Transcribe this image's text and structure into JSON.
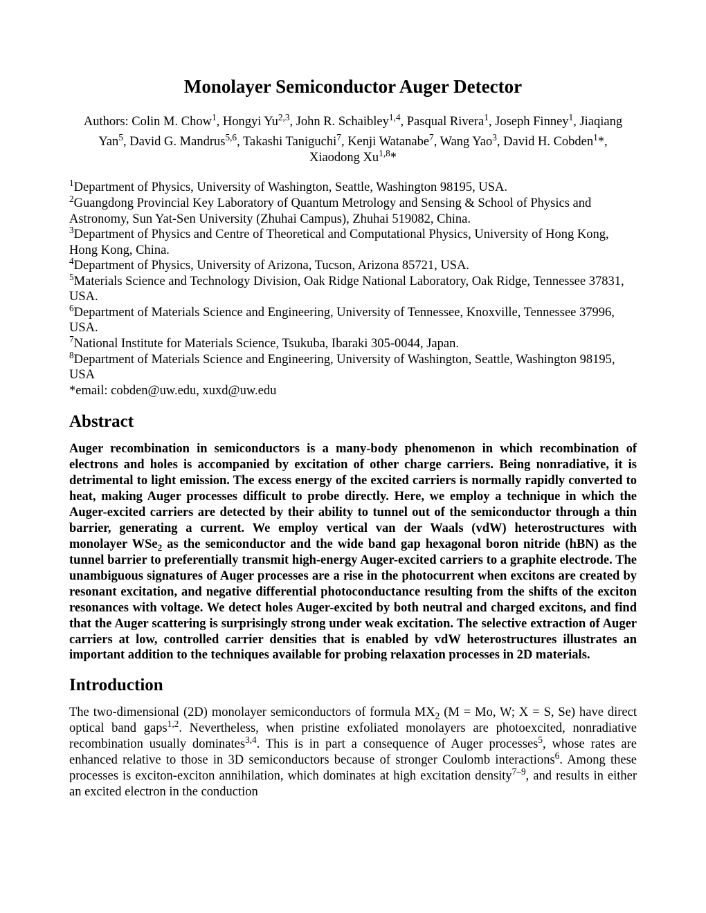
{
  "title": "Monolayer Semiconductor Auger Detector",
  "authors_line1_prefix": "Authors: Colin M. Chow",
  "a1_s": "1",
  "a1_t": ", Hongyi Yu",
  "a2_s": "2,3",
  "a2_t": ", John R. Schaibley",
  "a3_s": "1,4",
  "a3_t": ", Pasqual Rivera",
  "a4_s": "1",
  "a4_t": ", Joseph Finney",
  "a5_s": "1",
  "a5_t": ", Jiaqiang",
  "line2_a": "Yan",
  "a6_s": "5",
  "a6_t": ", David G. Mandrus",
  "a7_s": "5,6",
  "a7_t": ", Takashi Taniguchi",
  "a8_s": "7",
  "a8_t": ", Kenji Watanabe",
  "a9_s": "7",
  "a9_t": ", Wang Yao",
  "a10_s": "3",
  "a10_t": ", David H. Cobden",
  "a11_s": "1",
  "a11_t": "*,",
  "line3_a": "Xiaodong Xu",
  "a12_s": "1,8",
  "a12_t": "*",
  "aff1_s": "1",
  "aff1": "Department of Physics, University of Washington, Seattle, Washington 98195, USA.",
  "aff2_s": "2",
  "aff2": "Guangdong Provincial Key Laboratory of Quantum Metrology and Sensing & School of Physics and Astronomy, Sun Yat-Sen University (Zhuhai Campus), Zhuhai 519082, China.",
  "aff3_s": "3",
  "aff3": "Department of Physics and Centre of Theoretical and Computational Physics, University of Hong Kong, Hong Kong, China.",
  "aff4_s": "4",
  "aff4": "Department of Physics, University of Arizona, Tucson, Arizona 85721, USA.",
  "aff5_s": "5",
  "aff5": "Materials Science and Technology Division, Oak Ridge National Laboratory, Oak Ridge, Tennessee 37831, USA.",
  "aff6_s": "6",
  "aff6": "Department of Materials Science and Engineering, University of Tennessee, Knoxville, Tennessee 37996, USA.",
  "aff7_s": "7",
  "aff7": "National Institute for Materials Science, Tsukuba, Ibaraki 305-0044, Japan.",
  "aff8_s": "8",
  "aff8": "Department of Materials Science and Engineering, University of Washington, Seattle, Washington 98195, USA",
  "email": "*email: cobden@uw.edu, xuxd@uw.edu",
  "abstract_head": "Abstract",
  "abs_p1a": "Auger recombination in semiconductors is a many-body phenomenon in which recombination of electrons and holes is accompanied by excitation of other charge carriers. Being nonradiative, it is detrimental to light emission. The excess energy of the excited carriers is normally rapidly converted to heat, making Auger processes difficult to probe directly. Here, we employ a technique in which the Auger-excited carriers are detected by their ability to tunnel out of the semiconductor through a thin barrier, generating a current. We employ vertical van der Waals (vdW) heterostructures with monolayer WSe",
  "abs_sub": "2",
  "abs_p1b": " as the semiconductor and the wide band gap hexagonal boron nitride (hBN) as the tunnel barrier to preferentially transmit high-energy Auger-excited carriers to a graphite electrode. The unambiguous signatures of Auger processes are a rise in the photocurrent when excitons are created by resonant excitation, and negative differential photoconductance resulting from the shifts of the exciton resonances with voltage. We detect holes Auger-excited by both neutral and charged excitons, and find that the Auger scattering is surprisingly strong under weak excitation. The selective extraction of Auger carriers at low, controlled carrier densities that is enabled by vdW heterostructures illustrates an important addition to the techniques available for probing relaxation processes in 2D materials.",
  "intro_head": "Introduction",
  "intro_a": "The two-dimensional (2D) monolayer semiconductors of formula MX",
  "intro_sub1": "2",
  "intro_b": " (M = Mo, W; X = S, Se) have direct optical band gaps",
  "intro_sup1": "1,2",
  "intro_c": ". Nevertheless, when pristine exfoliated monolayers are photoexcited, nonradiative recombination usually dominates",
  "intro_sup2": "3,4",
  "intro_d": ". This is in part a consequence of Auger processes",
  "intro_sup3": "5",
  "intro_e": ", whose rates are enhanced relative to those in 3D semiconductors because of stronger Coulomb interactions",
  "intro_sup4": "6",
  "intro_f": ". Among these processes is exciton-exciton annihilation, which dominates at high excitation density",
  "intro_sup5": "7–9",
  "intro_g": ", and results in either an excited electron in the conduction"
}
